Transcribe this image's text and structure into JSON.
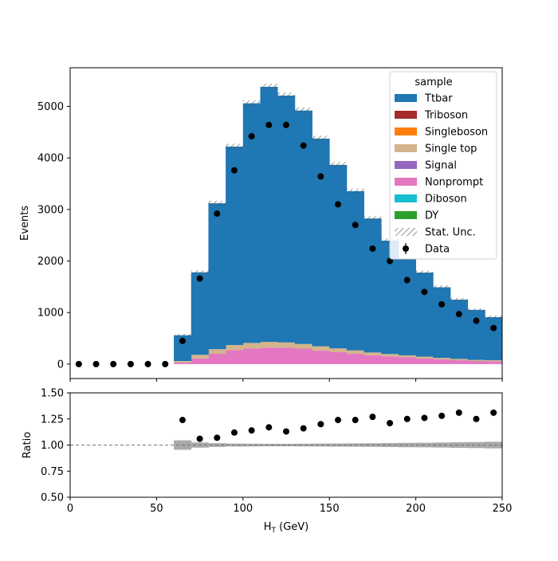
{
  "chart_data": [
    {
      "type": "bar",
      "stacked": true,
      "xlabel_base": "H",
      "xlabel_sub": "T",
      "xlabel_unit": " (GeV)",
      "ylabel": "Events",
      "xlim": [
        0,
        250
      ],
      "ylim": [
        -280,
        5750
      ],
      "xticks": [
        0,
        50,
        100,
        150,
        200,
        250
      ],
      "yticks": [
        0,
        1000,
        2000,
        3000,
        4000,
        5000
      ],
      "bin_edges": [
        0,
        10,
        20,
        30,
        40,
        50,
        60,
        70,
        80,
        90,
        100,
        110,
        120,
        130,
        140,
        150,
        160,
        170,
        180,
        190,
        200,
        210,
        220,
        230,
        240,
        250
      ],
      "series": [
        {
          "name": "Nonprompt",
          "color": "#e377c2",
          "values": [
            0,
            0,
            0,
            0,
            0,
            0,
            30,
            110,
            200,
            270,
            300,
            320,
            320,
            300,
            260,
            230,
            200,
            170,
            150,
            130,
            110,
            90,
            75,
            60,
            55
          ]
        },
        {
          "name": "Single top",
          "color": "#d4b48c",
          "values": [
            0,
            0,
            0,
            0,
            0,
            0,
            30,
            70,
            90,
            100,
            110,
            110,
            100,
            90,
            85,
            75,
            65,
            55,
            45,
            40,
            35,
            30,
            25,
            22,
            20
          ]
        },
        {
          "name": "Ttbar",
          "color": "#1f77b4",
          "values": [
            0,
            0,
            0,
            0,
            0,
            0,
            500,
            1600,
            2830,
            3850,
            4650,
            4950,
            4790,
            4530,
            4030,
            3560,
            3090,
            2600,
            2200,
            1870,
            1630,
            1370,
            1150,
            970,
            835
          ]
        }
      ],
      "empty_legend_series": [
        {
          "name": "Triboson",
          "color": "#a52a2a"
        },
        {
          "name": "Singleboson",
          "color": "#ff7f0e"
        },
        {
          "name": "Signal",
          "color": "#9467bd"
        },
        {
          "name": "Diboson",
          "color": "#17becf"
        },
        {
          "name": "DY",
          "color": "#2ca02c"
        }
      ],
      "stat_unc": {
        "name": "Stat. Unc.",
        "values": [
          0,
          0,
          0,
          0,
          0,
          0,
          25,
          40,
          50,
          55,
          60,
          60,
          60,
          60,
          55,
          55,
          50,
          45,
          45,
          40,
          40,
          35,
          35,
          30,
          30
        ]
      },
      "data_points": {
        "name": "Data",
        "x": [
          5,
          15,
          25,
          35,
          45,
          55,
          65,
          75,
          85,
          95,
          105,
          115,
          125,
          135,
          145,
          155,
          165,
          175,
          185,
          195,
          205,
          215,
          225,
          235,
          245
        ],
        "y": [
          0,
          0,
          0,
          0,
          0,
          0,
          450,
          1660,
          2920,
          3760,
          4420,
          4640,
          4640,
          4240,
          3640,
          3100,
          2700,
          2240,
          2000,
          1630,
          1400,
          1160,
          970,
          840,
          700
        ]
      },
      "legend_title": "sample",
      "legend_order": [
        "Ttbar",
        "Triboson",
        "Singleboson",
        "Single top",
        "Signal",
        "Nonprompt",
        "Diboson",
        "DY",
        "Stat. Unc.",
        "Data"
      ],
      "legend_position": "top-right",
      "grid": false
    },
    {
      "type": "scatter",
      "ylabel": "Ratio",
      "xlim": [
        0,
        250
      ],
      "ylim": [
        0.5,
        1.5
      ],
      "yticks": [
        "0.50",
        "0.75",
        "1.00",
        "1.25",
        "1.50"
      ],
      "ytick_values": [
        0.5,
        0.75,
        1.0,
        1.25,
        1.5
      ],
      "reference_line": 1.0,
      "x": [
        65,
        75,
        85,
        95,
        105,
        115,
        125,
        135,
        145,
        155,
        165,
        175,
        185,
        195,
        205,
        215,
        225,
        235,
        245
      ],
      "y": [
        1.24,
        1.06,
        1.07,
        1.12,
        1.14,
        1.17,
        1.13,
        1.16,
        1.2,
        1.24,
        1.24,
        1.27,
        1.21,
        1.25,
        1.26,
        1.28,
        1.31,
        1.25,
        1.31
      ],
      "unc_band": {
        "bins": [
          60,
          70,
          80,
          90,
          100,
          110,
          120,
          130,
          140,
          150,
          160,
          170,
          180,
          190,
          200,
          210,
          220,
          230,
          240
        ],
        "halfwidth": [
          0.045,
          0.025,
          0.018,
          0.014,
          0.013,
          0.012,
          0.012,
          0.013,
          0.014,
          0.015,
          0.016,
          0.017,
          0.019,
          0.021,
          0.022,
          0.024,
          0.027,
          0.029,
          0.032
        ]
      },
      "grid": false
    }
  ]
}
